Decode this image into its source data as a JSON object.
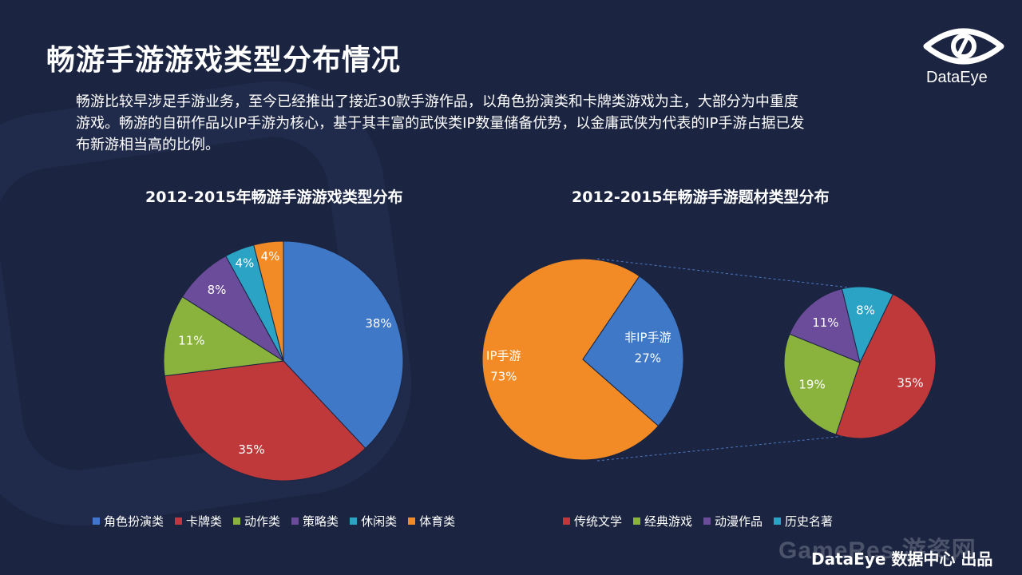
{
  "header": {
    "title": "畅游手游游戏类型分布情况",
    "logo_text": "DataEye"
  },
  "intro": {
    "lines": [
      "畅游比较早涉足手游业务，至今已经推出了接近30款手游作品，以角色扮演类和卡牌类游戏为主，大部分为中重度",
      "游戏。畅游的自研作品以IP手游为核心，基于其丰富的武侠类IP数量储备优势，以金庸武侠为代表的IP手游占据已发",
      "布新游相当高的比例。"
    ]
  },
  "chart_data": [
    {
      "type": "pie",
      "title": "2012-2015年畅游手游游戏类型分布",
      "categories": [
        "角色扮演类",
        "卡牌类",
        "动作类",
        "策略类",
        "休闲类",
        "体育类"
      ],
      "values": [
        38,
        35,
        11,
        8,
        4,
        4
      ],
      "labels": [
        "38%",
        "35%",
        "11%",
        "8%",
        "4%",
        "4%"
      ],
      "colors": [
        "#3e78c6",
        "#c0393a",
        "#8ab33d",
        "#6b4c9a",
        "#2aa3c4",
        "#f28b25"
      ],
      "legend": "bottom"
    },
    {
      "type": "pie",
      "title": "2012-2015年畅游手游题材类型分布",
      "categories": [
        "非IP手游",
        "IP手游"
      ],
      "values": [
        27,
        73
      ],
      "labels": [
        "27%",
        "73%"
      ],
      "colors": [
        "#3e78c6",
        "#f28b25"
      ],
      "breakdown": {
        "of": "IP手游",
        "categories": [
          "传统文学",
          "经典游戏",
          "动漫作品",
          "历史名著"
        ],
        "values": [
          35,
          19,
          11,
          8
        ],
        "labels": [
          "35%",
          "19%",
          "11%",
          "8%"
        ],
        "colors": [
          "#c0393a",
          "#8ab33d",
          "#6b4c9a",
          "#2aa3c4"
        ]
      },
      "legend": "bottom"
    }
  ],
  "footer": {
    "credit": "DataEye 数据中心 出品",
    "watermark": "GameRes 游资网"
  }
}
